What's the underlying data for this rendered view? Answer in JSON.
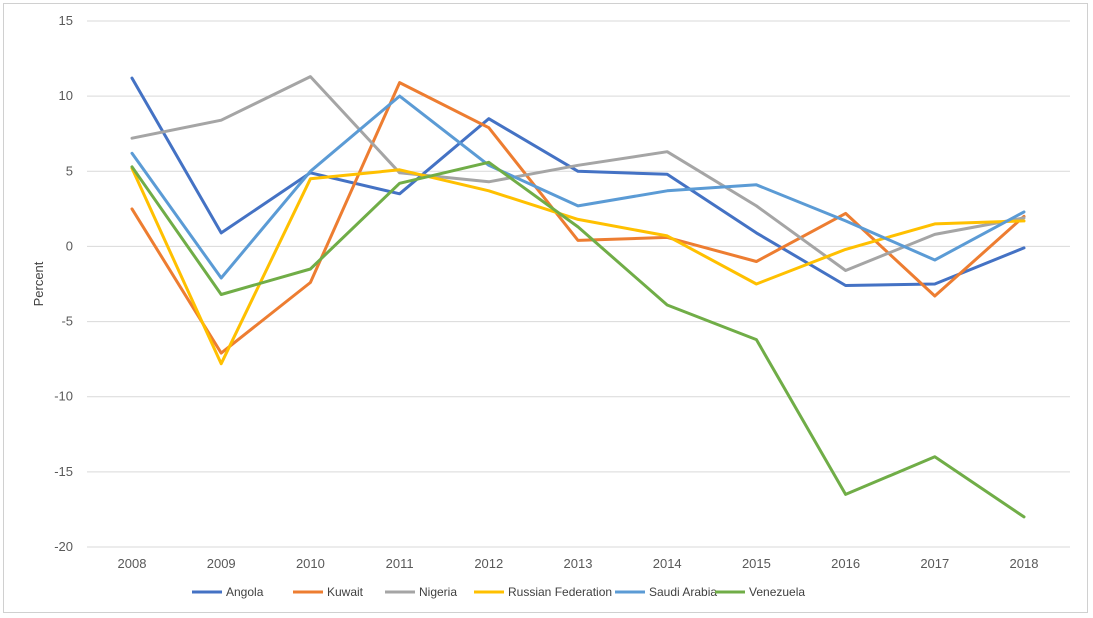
{
  "chart_data": {
    "type": "line",
    "title": "",
    "xlabel": "",
    "ylabel": "Percent",
    "ylim": [
      -20,
      15
    ],
    "yticks": [
      15,
      10,
      5,
      0,
      -5,
      -10,
      -15,
      -20
    ],
    "grid": true,
    "legend_position": "bottom",
    "x": [
      "2008",
      "2009",
      "2010",
      "2011",
      "2012",
      "2013",
      "2014",
      "2015",
      "2016",
      "2017",
      "2018"
    ],
    "series": [
      {
        "name": "Angola",
        "color": "#4472c4",
        "values": [
          11.2,
          0.9,
          4.9,
          3.5,
          8.5,
          5.0,
          4.8,
          0.9,
          -2.6,
          -2.5,
          -0.1
        ]
      },
      {
        "name": "Kuwait",
        "color": "#ed7d31",
        "values": [
          2.5,
          -7.1,
          -2.4,
          10.9,
          7.9,
          0.4,
          0.6,
          -1.0,
          2.2,
          -3.3,
          2.0
        ]
      },
      {
        "name": "Nigeria",
        "color": "#a5a5a5",
        "values": [
          7.2,
          8.4,
          11.3,
          4.9,
          4.3,
          5.4,
          6.3,
          2.7,
          -1.6,
          0.8,
          1.9
        ]
      },
      {
        "name": "Russian Federation",
        "color": "#ffc000",
        "values": [
          5.2,
          -7.8,
          4.5,
          5.1,
          3.7,
          1.8,
          0.7,
          -2.5,
          -0.2,
          1.5,
          1.7
        ]
      },
      {
        "name": "Saudi Arabia",
        "color": "#5b9bd5",
        "values": [
          6.2,
          -2.1,
          5.0,
          10.0,
          5.4,
          2.7,
          3.7,
          4.1,
          1.7,
          -0.9,
          2.3
        ]
      },
      {
        "name": "Venezuela",
        "color": "#70ad47",
        "values": [
          5.3,
          -3.2,
          -1.5,
          4.2,
          5.6,
          1.3,
          -3.9,
          -6.2,
          -16.5,
          -14.0,
          -18.0
        ]
      }
    ]
  }
}
